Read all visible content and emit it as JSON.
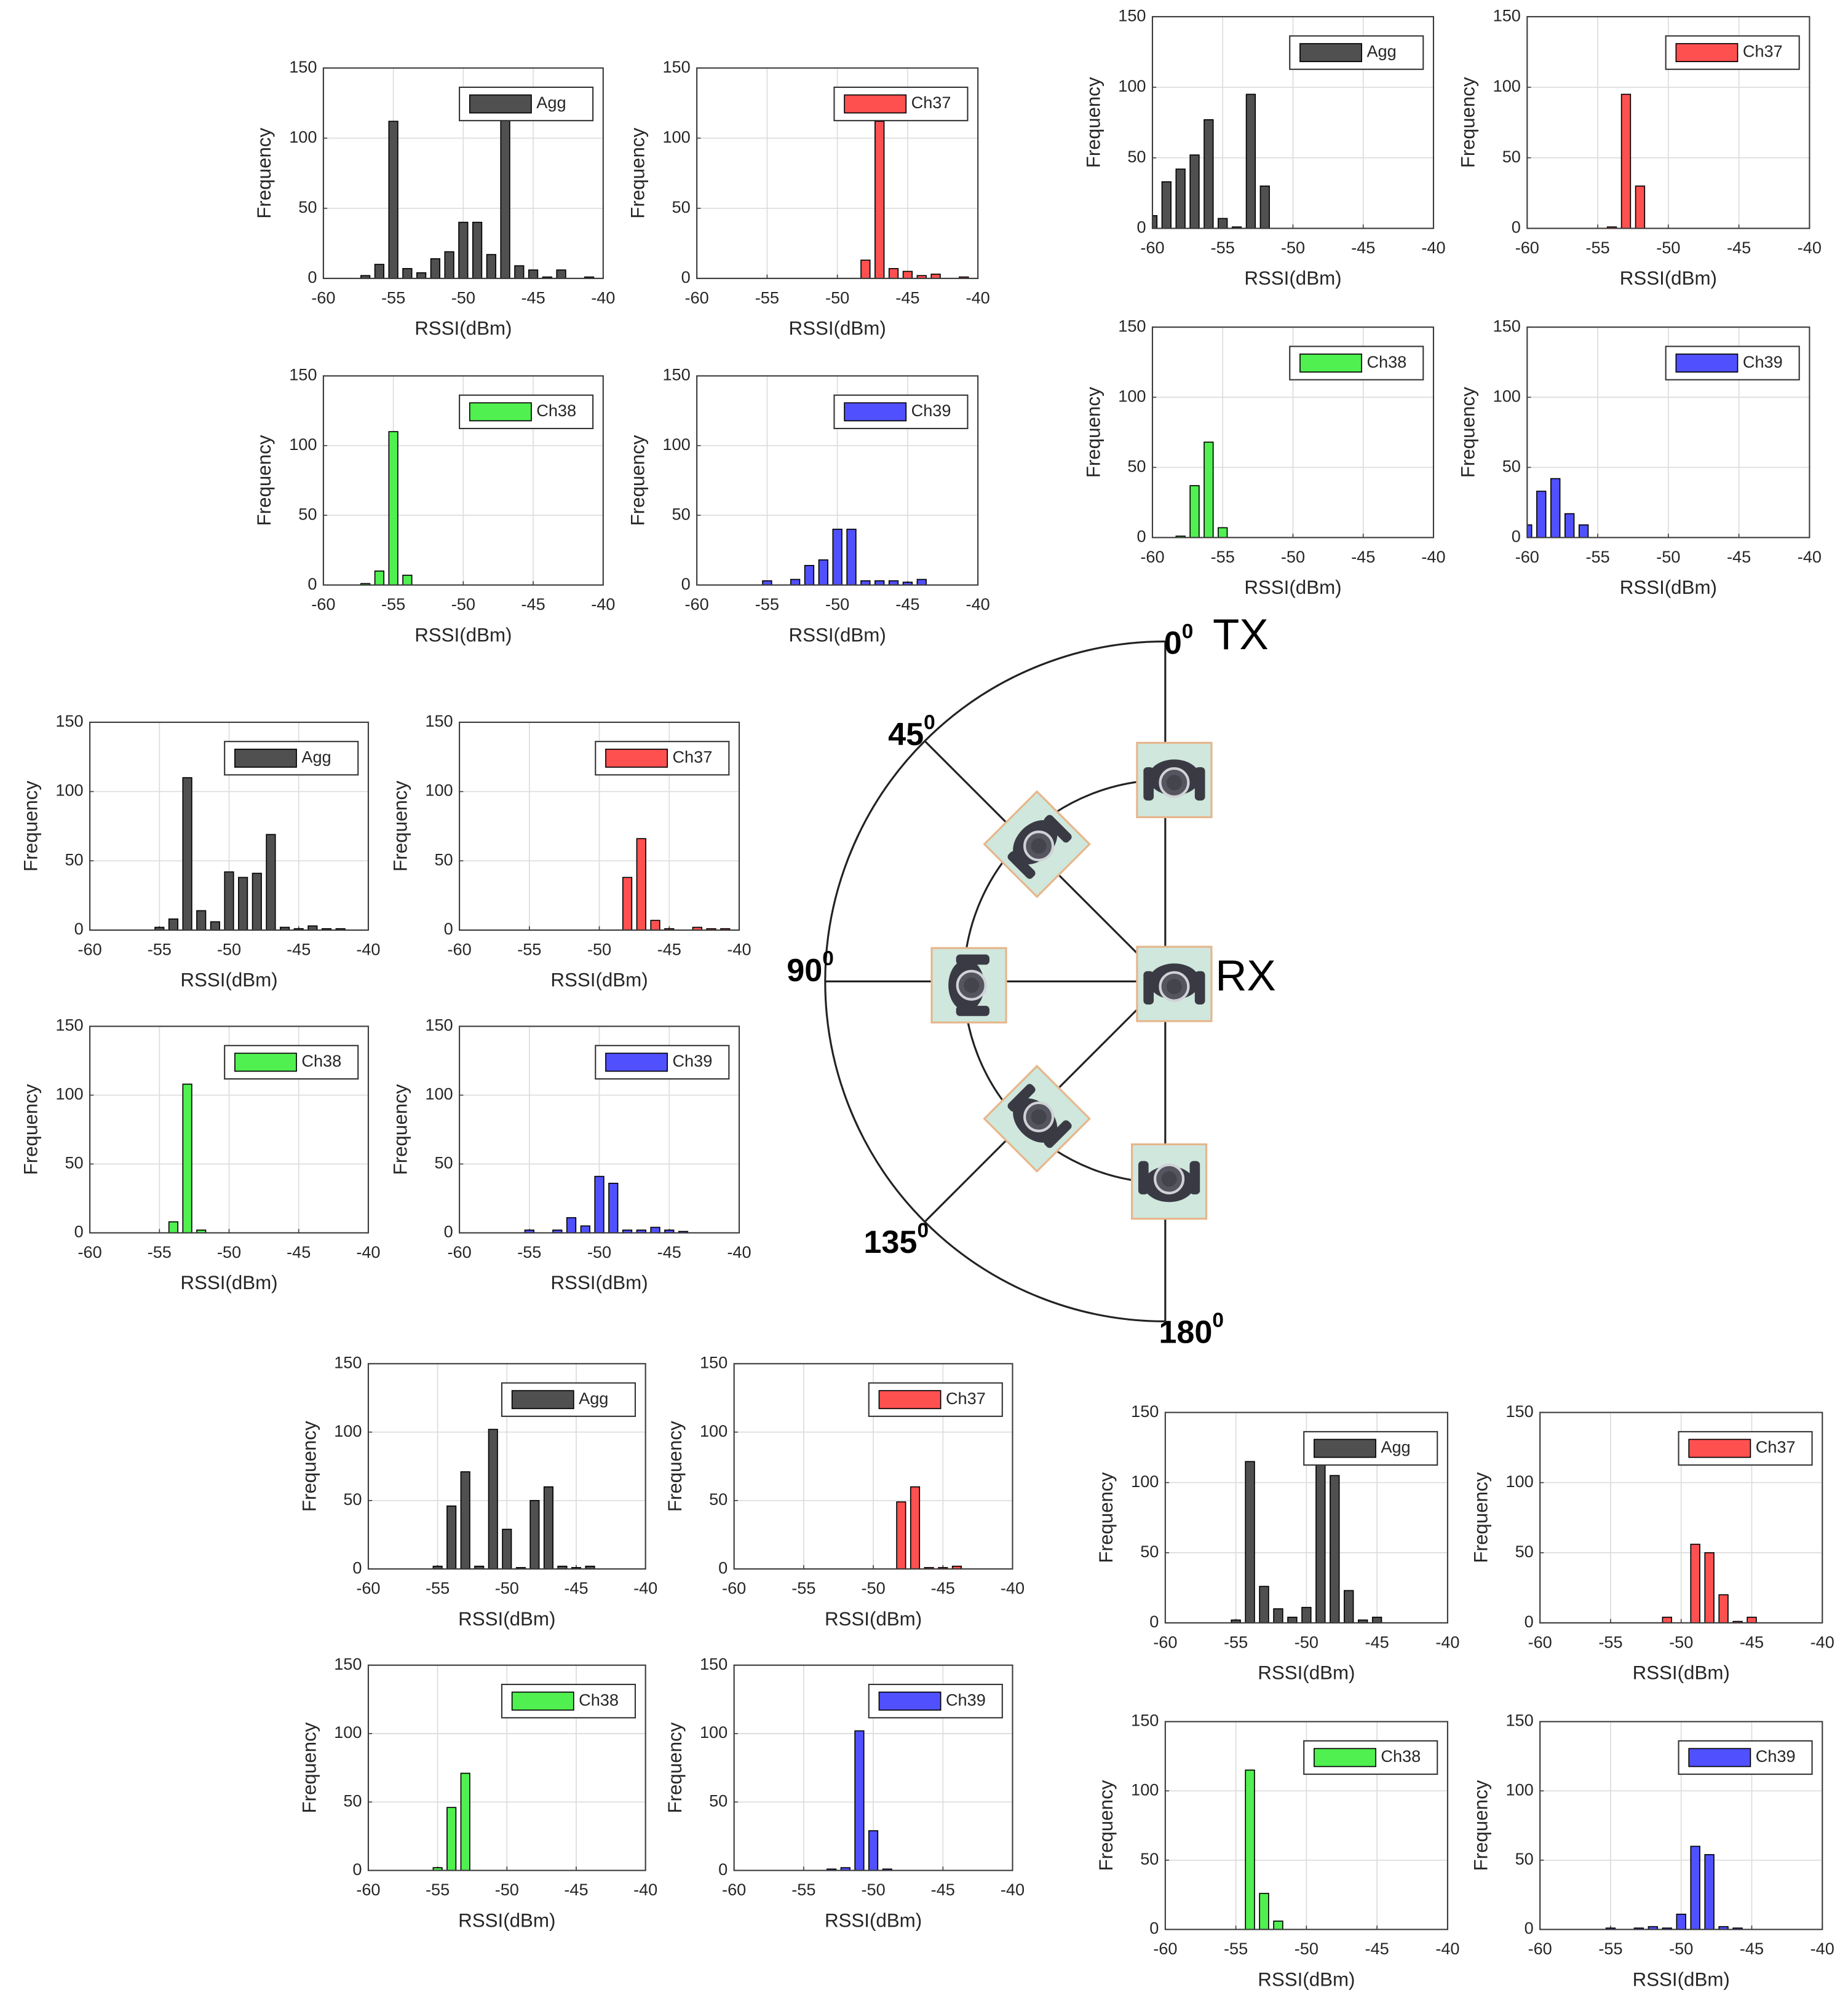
{
  "chart_data": [
    {
      "type": "histogram",
      "series": [
        {
          "name": "Agg",
          "color": "#505050",
          "values": [
            2,
            10,
            112,
            7,
            4,
            14,
            19,
            40,
            40,
            17,
            113,
            9,
            6,
            1,
            6,
            0,
            1
          ]
        }
      ],
      "bins": [
        -57.5,
        -56.5,
        -55.5,
        -54.5,
        -53.5,
        -52.5,
        -51.5,
        -50.5,
        -49.5,
        -48.5,
        -47.5,
        -46.5,
        -45.5,
        -44.5,
        -43.5,
        -42.5,
        -41.5,
        -40.5
      ],
      "xlabel": "RSSI(dBm)",
      "ylabel": "Frequency",
      "xlim": [
        -60,
        -40
      ],
      "xticks": [
        -60,
        -55,
        -50,
        -45,
        -40
      ],
      "ylim": [
        0,
        150
      ],
      "yticks": [
        0,
        50,
        100,
        150
      ],
      "grid": true,
      "legend": "upper right"
    },
    {
      "type": "histogram",
      "series": [
        {
          "name": "Ch37",
          "color": "#ff5050",
          "values": [
            13,
            112,
            7,
            5,
            2,
            3,
            0,
            1
          ]
        }
      ],
      "bins": [
        -48.5,
        -47.5,
        -46.5,
        -45.5,
        -44.5,
        -43.5,
        -42.5,
        -41.5,
        -40.5
      ],
      "xlabel": "RSSI(dBm)",
      "ylabel": "Frequency",
      "xlim": [
        -60,
        -40
      ],
      "xticks": [
        -60,
        -55,
        -50,
        -45,
        -40
      ],
      "ylim": [
        0,
        150
      ],
      "yticks": [
        0,
        50,
        100,
        150
      ],
      "grid": true,
      "legend": "upper right"
    },
    {
      "type": "histogram",
      "series": [
        {
          "name": "Ch38",
          "color": "#50f050",
          "values": [
            1,
            10,
            110,
            7
          ]
        }
      ],
      "bins": [
        -57.5,
        -56.5,
        -55.5,
        -54.5,
        -53.5
      ],
      "xlabel": "RSSI(dBm)",
      "ylabel": "Frequency",
      "xlim": [
        -60,
        -40
      ],
      "xticks": [
        -60,
        -55,
        -50,
        -45,
        -40
      ],
      "ylim": [
        0,
        150
      ],
      "yticks": [
        0,
        50,
        100,
        150
      ],
      "grid": true,
      "legend": "upper right"
    },
    {
      "type": "histogram",
      "series": [
        {
          "name": "Ch39",
          "color": "#5050ff",
          "values": [
            3,
            0,
            4,
            14,
            18,
            40,
            40,
            3,
            3,
            3,
            2,
            4
          ]
        }
      ],
      "bins": [
        -55.5,
        -54.5,
        -53.5,
        -52.5,
        -51.5,
        -50.5,
        -49.5,
        -48.5,
        -47.5,
        -46.5,
        -45.5,
        -44.5,
        -43.5
      ],
      "xlabel": "RSSI(dBm)",
      "ylabel": "Frequency",
      "xlim": [
        -60,
        -40
      ],
      "xticks": [
        -60,
        -55,
        -50,
        -45,
        -40
      ],
      "ylim": [
        0,
        150
      ],
      "yticks": [
        0,
        50,
        100,
        150
      ],
      "grid": true,
      "legend": "upper right"
    },
    {
      "type": "histogram",
      "series": [
        {
          "name": "Agg",
          "color": "#505050",
          "values": [
            9,
            33,
            42,
            52,
            77,
            7,
            1,
            95,
            30
          ]
        }
      ],
      "bins": [
        -60.5,
        -59.5,
        -58.5,
        -57.5,
        -56.5,
        -55.5,
        -54.5,
        -53.5,
        -52.5,
        -51.5
      ],
      "xlabel": "RSSI(dBm)",
      "ylabel": "Frequency",
      "xlim": [
        -60,
        -40
      ],
      "xticks": [
        -60,
        -55,
        -50,
        -45,
        -40
      ],
      "ylim": [
        0,
        150
      ],
      "yticks": [
        0,
        50,
        100,
        150
      ],
      "grid": true,
      "legend": "upper right"
    },
    {
      "type": "histogram",
      "series": [
        {
          "name": "Ch37",
          "color": "#ff5050",
          "values": [
            1,
            95,
            30
          ]
        }
      ],
      "bins": [
        -54.5,
        -53.5,
        -52.5,
        -51.5
      ],
      "xlabel": "RSSI(dBm)",
      "ylabel": "Frequency",
      "xlim": [
        -60,
        -40
      ],
      "xticks": [
        -60,
        -55,
        -50,
        -45,
        -40
      ],
      "ylim": [
        0,
        150
      ],
      "yticks": [
        0,
        50,
        100,
        150
      ],
      "grid": true,
      "legend": "upper right"
    },
    {
      "type": "histogram",
      "series": [
        {
          "name": "Ch38",
          "color": "#50f050",
          "values": [
            1,
            37,
            68,
            7
          ]
        }
      ],
      "bins": [
        -58.5,
        -57.5,
        -56.5,
        -55.5,
        -54.5
      ],
      "xlabel": "RSSI(dBm)",
      "ylabel": "Frequency",
      "xlim": [
        -60,
        -40
      ],
      "xticks": [
        -60,
        -55,
        -50,
        -45,
        -40
      ],
      "ylim": [
        0,
        150
      ],
      "yticks": [
        0,
        50,
        100,
        150
      ],
      "grid": true,
      "legend": "upper right"
    },
    {
      "type": "histogram",
      "series": [
        {
          "name": "Ch39",
          "color": "#5050ff",
          "values": [
            9,
            33,
            42,
            17,
            9
          ]
        }
      ],
      "bins": [
        -60.5,
        -59.5,
        -58.5,
        -57.5,
        -56.5,
        -55.5
      ],
      "xlabel": "RSSI(dBm)",
      "ylabel": "Frequency",
      "xlim": [
        -60,
        -40
      ],
      "xticks": [
        -60,
        -55,
        -50,
        -45,
        -40
      ],
      "ylim": [
        0,
        150
      ],
      "yticks": [
        0,
        50,
        100,
        150
      ],
      "grid": true,
      "legend": "upper right"
    },
    {
      "type": "histogram",
      "series": [
        {
          "name": "Agg",
          "color": "#505050",
          "values": [
            2,
            8,
            110,
            14,
            6,
            42,
            38,
            41,
            69,
            2,
            1,
            3,
            1,
            1
          ]
        }
      ],
      "bins": [
        -55.5,
        -54.5,
        -53.5,
        -52.5,
        -51.5,
        -50.5,
        -49.5,
        -48.5,
        -47.5,
        -46.5,
        -45.5,
        -44.5,
        -43.5,
        -42.5,
        -41.5
      ],
      "xlabel": "RSSI(dBm)",
      "ylabel": "Frequency",
      "xlim": [
        -60,
        -40
      ],
      "xticks": [
        -60,
        -55,
        -50,
        -45,
        -40
      ],
      "ylim": [
        0,
        150
      ],
      "yticks": [
        0,
        50,
        100,
        150
      ],
      "grid": true,
      "legend": "upper right"
    },
    {
      "type": "histogram",
      "series": [
        {
          "name": "Ch37",
          "color": "#ff5050",
          "values": [
            38,
            66,
            7,
            1,
            0,
            2,
            1,
            1
          ]
        }
      ],
      "bins": [
        -48.5,
        -47.5,
        -46.5,
        -45.5,
        -44.5,
        -43.5,
        -42.5,
        -41.5,
        -40.5
      ],
      "xlabel": "RSSI(dBm)",
      "ylabel": "Frequency",
      "xlim": [
        -60,
        -40
      ],
      "xticks": [
        -60,
        -55,
        -50,
        -45,
        -40
      ],
      "ylim": [
        0,
        150
      ],
      "yticks": [
        0,
        50,
        100,
        150
      ],
      "grid": true,
      "legend": "upper right"
    },
    {
      "type": "histogram",
      "series": [
        {
          "name": "Ch38",
          "color": "#50f050",
          "values": [
            8,
            108,
            2
          ]
        }
      ],
      "bins": [
        -54.5,
        -53.5,
        -52.5,
        -51.5
      ],
      "xlabel": "RSSI(dBm)",
      "ylabel": "Frequency",
      "xlim": [
        -60,
        -40
      ],
      "xticks": [
        -60,
        -55,
        -50,
        -45,
        -40
      ],
      "ylim": [
        0,
        150
      ],
      "yticks": [
        0,
        50,
        100,
        150
      ],
      "grid": true,
      "legend": "upper right"
    },
    {
      "type": "histogram",
      "series": [
        {
          "name": "Ch39",
          "color": "#5050ff",
          "values": [
            2,
            0,
            2,
            11,
            5,
            41,
            36,
            2,
            2,
            4,
            2,
            1
          ]
        }
      ],
      "bins": [
        -55.5,
        -54.5,
        -53.5,
        -52.5,
        -51.5,
        -50.5,
        -49.5,
        -48.5,
        -47.5,
        -46.5,
        -45.5,
        -44.5,
        -43.5
      ],
      "xlabel": "RSSI(dBm)",
      "ylabel": "Frequency",
      "xlim": [
        -60,
        -40
      ],
      "xticks": [
        -60,
        -55,
        -50,
        -45,
        -40
      ],
      "ylim": [
        0,
        150
      ],
      "yticks": [
        0,
        50,
        100,
        150
      ],
      "grid": true,
      "legend": "upper right"
    },
    {
      "type": "histogram",
      "series": [
        {
          "name": "Agg",
          "color": "#505050",
          "values": [
            2,
            46,
            71,
            2,
            102,
            29,
            1,
            50,
            60,
            2,
            1,
            2
          ]
        }
      ],
      "bins": [
        -55.5,
        -54.5,
        -53.5,
        -52.5,
        -51.5,
        -50.5,
        -49.5,
        -48.5,
        -47.5,
        -46.5,
        -45.5,
        -44.5,
        -43.5
      ],
      "xlabel": "RSSI(dBm)",
      "ylabel": "Frequency",
      "xlim": [
        -60,
        -40
      ],
      "xticks": [
        -60,
        -55,
        -50,
        -45,
        -40
      ],
      "ylim": [
        0,
        150
      ],
      "yticks": [
        0,
        50,
        100,
        150
      ],
      "grid": true,
      "legend": "upper right"
    },
    {
      "type": "histogram",
      "series": [
        {
          "name": "Ch37",
          "color": "#ff5050",
          "values": [
            49,
            60,
            1,
            1,
            2
          ]
        }
      ],
      "bins": [
        -48.5,
        -47.5,
        -46.5,
        -45.5,
        -44.5,
        -43.5
      ],
      "xlabel": "RSSI(dBm)",
      "ylabel": "Frequency",
      "xlim": [
        -60,
        -40
      ],
      "xticks": [
        -60,
        -55,
        -50,
        -45,
        -40
      ],
      "ylim": [
        0,
        150
      ],
      "yticks": [
        0,
        50,
        100,
        150
      ],
      "grid": true,
      "legend": "upper right"
    },
    {
      "type": "histogram",
      "series": [
        {
          "name": "Ch38",
          "color": "#50f050",
          "values": [
            2,
            46,
            71
          ]
        }
      ],
      "bins": [
        -55.5,
        -54.5,
        -53.5,
        -52.5
      ],
      "xlabel": "RSSI(dBm)",
      "ylabel": "Frequency",
      "xlim": [
        -60,
        -40
      ],
      "xticks": [
        -60,
        -55,
        -50,
        -45,
        -40
      ],
      "ylim": [
        0,
        150
      ],
      "yticks": [
        0,
        50,
        100,
        150
      ],
      "grid": true,
      "legend": "upper right"
    },
    {
      "type": "histogram",
      "series": [
        {
          "name": "Ch39",
          "color": "#5050ff",
          "values": [
            1,
            2,
            102,
            29,
            1
          ]
        }
      ],
      "bins": [
        -53.5,
        -52.5,
        -51.5,
        -50.5,
        -49.5,
        -48.5
      ],
      "xlabel": "RSSI(dBm)",
      "ylabel": "Frequency",
      "xlim": [
        -60,
        -40
      ],
      "xticks": [
        -60,
        -55,
        -50,
        -45,
        -40
      ],
      "ylim": [
        0,
        150
      ],
      "yticks": [
        0,
        50,
        100,
        150
      ],
      "grid": true,
      "legend": "upper right"
    },
    {
      "type": "histogram",
      "series": [
        {
          "name": "Agg",
          "color": "#505050",
          "values": [
            2,
            115,
            26,
            10,
            4,
            11,
            113,
            105,
            23,
            2,
            4
          ]
        }
      ],
      "bins": [
        -55.5,
        -54.5,
        -53.5,
        -52.5,
        -51.5,
        -50.5,
        -49.5,
        -48.5,
        -47.5,
        -46.5,
        -45.5,
        -44.5
      ],
      "xlabel": "RSSI(dBm)",
      "ylabel": "Frequency",
      "xlim": [
        -60,
        -40
      ],
      "xticks": [
        -60,
        -55,
        -50,
        -45,
        -40
      ],
      "ylim": [
        0,
        150
      ],
      "yticks": [
        0,
        50,
        100,
        150
      ],
      "grid": true,
      "legend": "upper right"
    },
    {
      "type": "histogram",
      "series": [
        {
          "name": "Ch37",
          "color": "#ff5050",
          "values": [
            4,
            0,
            56,
            50,
            20,
            1,
            4
          ]
        }
      ],
      "bins": [
        -51.5,
        -50.5,
        -49.5,
        -48.5,
        -47.5,
        -46.5,
        -45.5,
        -44.5
      ],
      "xlabel": "RSSI(dBm)",
      "ylabel": "Frequency",
      "xlim": [
        -60,
        -40
      ],
      "xticks": [
        -60,
        -55,
        -50,
        -45,
        -40
      ],
      "ylim": [
        0,
        150
      ],
      "yticks": [
        0,
        50,
        100,
        150
      ],
      "grid": true,
      "legend": "upper right"
    },
    {
      "type": "histogram",
      "series": [
        {
          "name": "Ch38",
          "color": "#50f050",
          "values": [
            115,
            26,
            6
          ]
        }
      ],
      "bins": [
        -54.5,
        -53.5,
        -52.5,
        -51.5
      ],
      "xlabel": "RSSI(dBm)",
      "ylabel": "Frequency",
      "xlim": [
        -60,
        -40
      ],
      "xticks": [
        -60,
        -55,
        -50,
        -45,
        -40
      ],
      "ylim": [
        0,
        150
      ],
      "yticks": [
        0,
        50,
        100,
        150
      ],
      "grid": true,
      "legend": "upper right"
    },
    {
      "type": "histogram",
      "series": [
        {
          "name": "Ch39",
          "color": "#5050ff",
          "values": [
            1,
            0,
            1,
            2,
            1,
            11,
            60,
            54,
            2,
            1
          ]
        }
      ],
      "bins": [
        -55.5,
        -54.5,
        -53.5,
        -52.5,
        -51.5,
        -50.5,
        -49.5,
        -48.5,
        -47.5,
        -46.5,
        -45.5
      ],
      "xlabel": "RSSI(dBm)",
      "ylabel": "Frequency",
      "xlim": [
        -60,
        -40
      ],
      "xticks": [
        -60,
        -55,
        -50,
        -45,
        -40
      ],
      "ylim": [
        0,
        150
      ],
      "yticks": [
        0,
        50,
        100,
        150
      ],
      "grid": true,
      "legend": "upper right"
    }
  ],
  "diagram": {
    "angles": [
      {
        "label": "0",
        "sup": "0"
      },
      {
        "label": "45",
        "sup": "0"
      },
      {
        "label": "90",
        "sup": "0"
      },
      {
        "label": "135",
        "sup": "0"
      },
      {
        "label": "180",
        "sup": "0"
      }
    ],
    "tx": "TX",
    "rx": "RX"
  }
}
